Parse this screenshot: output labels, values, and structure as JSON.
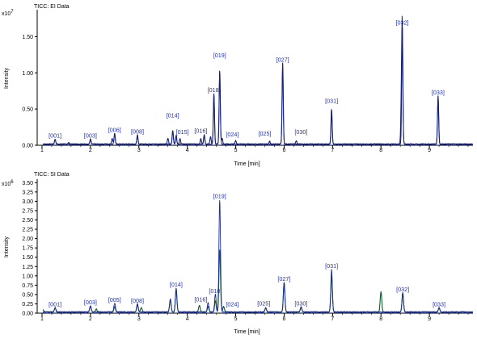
{
  "colors": {
    "background": "#ffffff",
    "axis": "#000000",
    "ei_trace": "#14207a",
    "si_trace_blue": "#1a2a9a",
    "si_trace_green": "#0d5a2a",
    "peak_label": "#2233aa"
  },
  "chart_data": [
    {
      "type": "line",
      "title": "TICC: EI Data",
      "xlabel": "Time [min]",
      "ylabel": "Intensity",
      "y_exponent": "x10",
      "y_exponent_power": "7",
      "xlim": [
        0.9,
        9.9
      ],
      "ylim": [
        0,
        1.85
      ],
      "x_ticks": [
        "1",
        "2",
        "3",
        "4",
        "5",
        "6",
        "7",
        "8",
        "9"
      ],
      "y_ticks": [
        "0.00",
        "0.50",
        "1.00",
        "1.50"
      ],
      "grid": false,
      "series": [
        {
          "color": "green",
          "peaks": [
            {
              "x": 1.27,
              "y": 0.07
            },
            {
              "x": 1.55,
              "y": 0.02
            },
            {
              "x": 2.0,
              "y": 0.07
            },
            {
              "x": 2.45,
              "y": 0.08
            },
            {
              "x": 2.5,
              "y": 0.15
            },
            {
              "x": 2.97,
              "y": 0.13
            },
            {
              "x": 3.6,
              "y": 0.08
            },
            {
              "x": 3.7,
              "y": 0.19
            },
            {
              "x": 3.77,
              "y": 0.12
            },
            {
              "x": 3.85,
              "y": 0.08
            },
            {
              "x": 4.28,
              "y": 0.08
            },
            {
              "x": 4.35,
              "y": 0.13
            },
            {
              "x": 4.48,
              "y": 0.1
            },
            {
              "x": 4.55,
              "y": 0.7
            },
            {
              "x": 4.67,
              "y": 1.02
            },
            {
              "x": 4.72,
              "y": 0.08
            },
            {
              "x": 5.0,
              "y": 0.05
            },
            {
              "x": 5.7,
              "y": 0.04
            },
            {
              "x": 5.97,
              "y": 1.12
            },
            {
              "x": 6.25,
              "y": 0.05
            },
            {
              "x": 6.98,
              "y": 0.48
            },
            {
              "x": 8.44,
              "y": 1.63
            },
            {
              "x": 9.18,
              "y": 0.67
            }
          ]
        },
        {
          "color": "blue",
          "peaks": [
            {
              "x": 1.27,
              "y": 0.06
            },
            {
              "x": 2.0,
              "y": 0.06
            },
            {
              "x": 2.5,
              "y": 0.14
            },
            {
              "x": 2.97,
              "y": 0.12
            },
            {
              "x": 3.7,
              "y": 0.18
            },
            {
              "x": 3.77,
              "y": 0.11
            },
            {
              "x": 4.35,
              "y": 0.12
            },
            {
              "x": 4.55,
              "y": 0.68
            },
            {
              "x": 4.67,
              "y": 1.0
            },
            {
              "x": 5.97,
              "y": 1.1
            },
            {
              "x": 6.98,
              "y": 0.47
            },
            {
              "x": 8.42,
              "y": 0.57
            },
            {
              "x": 8.44,
              "y": 1.62
            },
            {
              "x": 9.18,
              "y": 0.66
            }
          ]
        }
      ],
      "annotations": [
        {
          "label": "[001]",
          "x": 1.27,
          "y": 0.07
        },
        {
          "label": "[003]",
          "x": 2.0,
          "y": 0.07
        },
        {
          "label": "[006]",
          "x": 2.5,
          "y": 0.15
        },
        {
          "label": "[008]",
          "x": 2.97,
          "y": 0.13
        },
        {
          "label": "[014]",
          "x": 3.7,
          "y": 0.35
        },
        {
          "label": "[015]",
          "x": 3.9,
          "y": 0.12
        },
        {
          "label": "[016]",
          "x": 4.28,
          "y": 0.14
        },
        {
          "label": "[018]",
          "x": 4.55,
          "y": 0.7
        },
        {
          "label": "[019]",
          "x": 4.67,
          "y": 1.18
        },
        {
          "label": "[024]",
          "x": 4.93,
          "y": 0.09
        },
        {
          "label": "[025]",
          "x": 5.6,
          "y": 0.1
        },
        {
          "label": "[027]",
          "x": 5.97,
          "y": 1.12
        },
        {
          "label": "[030]",
          "x": 6.35,
          "y": 0.12
        },
        {
          "label": "[031]",
          "x": 6.98,
          "y": 0.55
        },
        {
          "label": "[032]",
          "x": 8.44,
          "y": 1.63
        },
        {
          "label": "[033]",
          "x": 9.18,
          "y": 0.67
        }
      ]
    },
    {
      "type": "line",
      "title": "TICC: SI Data",
      "xlabel": "Time [min]",
      "ylabel": "Intensity",
      "y_exponent": "x10",
      "y_exponent_power": "6",
      "xlim": [
        0.9,
        9.9
      ],
      "ylim": [
        0,
        3.55
      ],
      "x_ticks": [
        "1",
        "2",
        "3",
        "4",
        "5",
        "6",
        "7",
        "8",
        "9"
      ],
      "y_ticks": [
        "0.00",
        "0.25",
        "0.50",
        "0.75",
        "1.00",
        "1.25",
        "1.50",
        "1.75",
        "2.00",
        "2.25",
        "2.50",
        "2.75",
        "3.00",
        "3.25",
        "3.50"
      ],
      "grid": false,
      "series": [
        {
          "color": "green",
          "peaks": [
            {
              "x": 1.02,
              "y": 0.06
            },
            {
              "x": 1.27,
              "y": 0.1
            },
            {
              "x": 2.0,
              "y": 0.15
            },
            {
              "x": 2.12,
              "y": 0.08
            },
            {
              "x": 2.5,
              "y": 0.14
            },
            {
              "x": 2.97,
              "y": 0.2
            },
            {
              "x": 3.05,
              "y": 0.12
            },
            {
              "x": 3.65,
              "y": 0.32
            },
            {
              "x": 3.77,
              "y": 0.6
            },
            {
              "x": 4.25,
              "y": 0.18
            },
            {
              "x": 4.43,
              "y": 0.15
            },
            {
              "x": 4.58,
              "y": 0.3
            },
            {
              "x": 4.67,
              "y": 1.68
            },
            {
              "x": 4.75,
              "y": 0.15
            },
            {
              "x": 5.62,
              "y": 0.1
            },
            {
              "x": 6.0,
              "y": 0.78
            },
            {
              "x": 6.35,
              "y": 0.12
            },
            {
              "x": 6.98,
              "y": 0.98
            },
            {
              "x": 8.0,
              "y": 0.55
            },
            {
              "x": 8.45,
              "y": 0.5
            },
            {
              "x": 9.2,
              "y": 0.1
            }
          ]
        },
        {
          "color": "blue",
          "peaks": [
            {
              "x": 1.27,
              "y": 0.12
            },
            {
              "x": 2.0,
              "y": 0.17
            },
            {
              "x": 2.5,
              "y": 0.24
            },
            {
              "x": 2.97,
              "y": 0.22
            },
            {
              "x": 3.65,
              "y": 0.35
            },
            {
              "x": 3.77,
              "y": 0.65
            },
            {
              "x": 4.43,
              "y": 0.25
            },
            {
              "x": 4.58,
              "y": 0.48
            },
            {
              "x": 4.67,
              "y": 3.02
            },
            {
              "x": 5.62,
              "y": 0.12
            },
            {
              "x": 6.0,
              "y": 0.8
            },
            {
              "x": 6.35,
              "y": 0.14
            },
            {
              "x": 6.98,
              "y": 1.15
            },
            {
              "x": 8.45,
              "y": 0.52
            },
            {
              "x": 9.2,
              "y": 0.12
            }
          ]
        }
      ],
      "annotations": [
        {
          "label": "[001]",
          "x": 1.27,
          "y": 0.12
        },
        {
          "label": "[003]",
          "x": 2.0,
          "y": 0.17
        },
        {
          "label": "[005]",
          "x": 2.5,
          "y": 0.24
        },
        {
          "label": "[008]",
          "x": 2.97,
          "y": 0.22
        },
        {
          "label": "[014]",
          "x": 3.77,
          "y": 0.65
        },
        {
          "label": "[016]",
          "x": 4.28,
          "y": 0.25
        },
        {
          "label": "[018]",
          "x": 4.58,
          "y": 0.48
        },
        {
          "label": "[019]",
          "x": 4.67,
          "y": 3.02
        },
        {
          "label": "[024]",
          "x": 4.93,
          "y": 0.12
        },
        {
          "label": "[025]",
          "x": 5.58,
          "y": 0.14
        },
        {
          "label": "[027]",
          "x": 6.0,
          "y": 0.8
        },
        {
          "label": "[030]",
          "x": 6.35,
          "y": 0.14
        },
        {
          "label": "[031]",
          "x": 6.98,
          "y": 1.15
        },
        {
          "label": "[032]",
          "x": 8.45,
          "y": 0.52
        },
        {
          "label": "[033]",
          "x": 9.2,
          "y": 0.12
        }
      ]
    }
  ]
}
